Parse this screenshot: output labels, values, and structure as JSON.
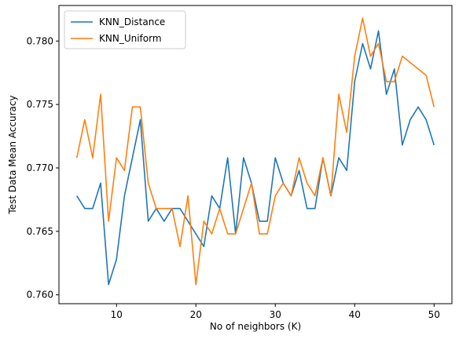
{
  "chart_data": {
    "type": "line",
    "title": "",
    "xlabel": "No of neighbors (K)",
    "ylabel": "Test Data Mean Accuracy",
    "xlim": [
      2.75,
      52.25
    ],
    "ylim": [
      0.7593,
      0.7828
    ],
    "xticks": [
      10,
      20,
      30,
      40,
      50
    ],
    "xtick_labels": [
      "10",
      "20",
      "30",
      "40",
      "50"
    ],
    "yticks": [
      0.76,
      0.765,
      0.77,
      0.775,
      0.78
    ],
    "ytick_labels": [
      "0.760",
      "0.765",
      "0.770",
      "0.775",
      "0.780"
    ],
    "grid": false,
    "legend_position": "top-left",
    "x": [
      5,
      6,
      7,
      8,
      9,
      10,
      11,
      12,
      13,
      14,
      15,
      16,
      17,
      18,
      19,
      20,
      21,
      22,
      23,
      24,
      25,
      26,
      27,
      28,
      29,
      30,
      31,
      32,
      33,
      34,
      35,
      36,
      37,
      38,
      39,
      40,
      41,
      42,
      43,
      44,
      45,
      46,
      47,
      48,
      49,
      50
    ],
    "series": [
      {
        "name": "KNN_Distance",
        "color": "#1f77b4",
        "values": [
          0.7678,
          0.7668,
          0.7668,
          0.7688,
          0.7608,
          0.7628,
          0.7678,
          0.7708,
          0.7738,
          0.7658,
          0.7668,
          0.7658,
          0.7668,
          0.7668,
          0.7658,
          0.7648,
          0.7638,
          0.7678,
          0.7668,
          0.7708,
          0.7648,
          0.7708,
          0.7688,
          0.7658,
          0.7658,
          0.7708,
          0.7688,
          0.7678,
          0.7698,
          0.7668,
          0.7668,
          0.7708,
          0.7678,
          0.7708,
          0.7698,
          0.7768,
          0.7798,
          0.7778,
          0.7808,
          0.7758,
          0.7778,
          0.7718,
          0.7738,
          0.7748,
          0.7738,
          0.7718
        ]
      },
      {
        "name": "KNN_Uniform",
        "color": "#ff7f0e",
        "values": [
          0.7708,
          0.7738,
          0.7708,
          0.7758,
          0.7658,
          0.7708,
          0.7698,
          0.7748,
          0.7748,
          0.7688,
          0.7668,
          0.7668,
          0.7668,
          0.7638,
          0.7678,
          0.7608,
          0.7658,
          0.7648,
          0.7668,
          0.7648,
          0.7648,
          0.7668,
          0.7688,
          0.7648,
          0.7648,
          0.7678,
          0.7688,
          0.7678,
          0.7708,
          0.7688,
          0.7678,
          0.7708,
          0.7678,
          0.7758,
          0.7728,
          0.7788,
          0.7818,
          0.7788,
          0.7798,
          0.7768,
          0.7768,
          0.7788,
          0.7783,
          0.7778,
          0.7773,
          0.7748
        ]
      }
    ]
  }
}
